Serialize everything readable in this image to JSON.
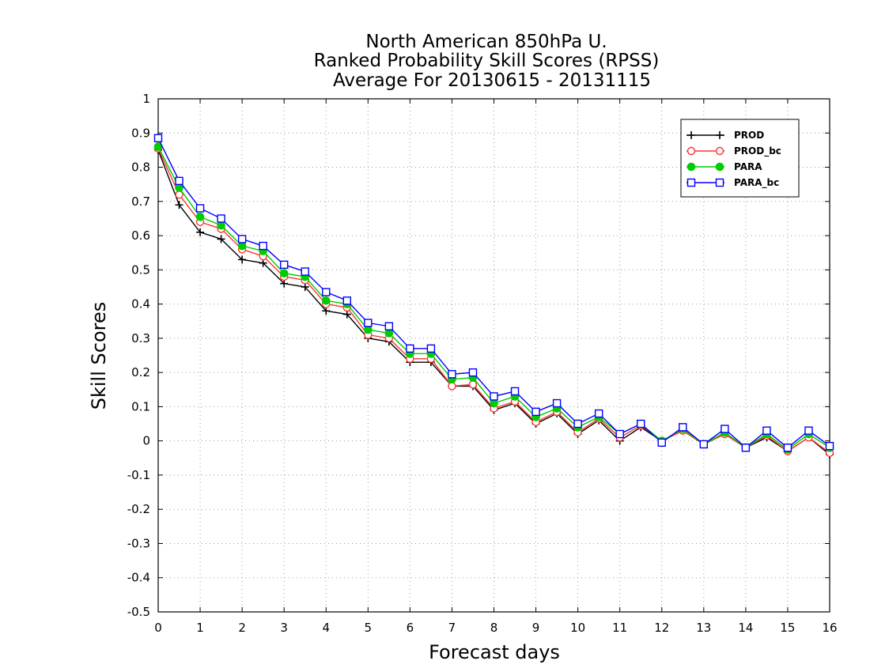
{
  "chart_data": {
    "type": "line",
    "title_lines": [
      "North American 850hPa U.",
      "Ranked Probability Skill Scores (RPSS)",
      "Average For 20130615 - 20131115"
    ],
    "xlabel": "Forecast days",
    "ylabel": "Skill Scores",
    "xlim": [
      0,
      16
    ],
    "ylim": [
      -0.5,
      1
    ],
    "xticks": [
      "0",
      "1",
      "2",
      "3",
      "4",
      "5",
      "6",
      "7",
      "8",
      "9",
      "10",
      "11",
      "12",
      "13",
      "14",
      "15",
      "16"
    ],
    "yticks": [
      "1",
      "0.9",
      "0.8",
      "0.7",
      "0.6",
      "0.5",
      "0.4",
      "0.3",
      "0.2",
      "0.1",
      "0",
      "-0.1",
      "-0.2",
      "-0.3",
      "-0.4",
      "-0.5"
    ],
    "grid": true,
    "legend_position": "top-right",
    "x": [
      0,
      0.5,
      1,
      1.5,
      2,
      2.5,
      3,
      3.5,
      4,
      4.5,
      5,
      5.5,
      6,
      6.5,
      7,
      7.5,
      8,
      8.5,
      9,
      9.5,
      10,
      10.5,
      11,
      11.5,
      12,
      12.5,
      13,
      13.5,
      14,
      14.5,
      15,
      15.5,
      16
    ],
    "series": [
      {
        "name": "PROD",
        "color": "#000000",
        "marker": "plus",
        "values": [
          0.85,
          0.69,
          0.61,
          0.59,
          0.53,
          0.52,
          0.46,
          0.45,
          0.38,
          0.37,
          0.3,
          0.29,
          0.23,
          0.23,
          0.16,
          0.16,
          0.09,
          0.11,
          0.05,
          0.08,
          0.02,
          0.06,
          0.0,
          0.04,
          0.0,
          0.03,
          -0.01,
          0.02,
          -0.02,
          0.01,
          -0.03,
          0.01,
          -0.04
        ]
      },
      {
        "name": "PROD_bc",
        "color": "#ff3333",
        "marker": "open-circle",
        "values": [
          0.855,
          0.72,
          0.64,
          0.62,
          0.56,
          0.54,
          0.48,
          0.47,
          0.4,
          0.39,
          0.31,
          0.3,
          0.24,
          0.24,
          0.16,
          0.165,
          0.095,
          0.115,
          0.055,
          0.085,
          0.025,
          0.065,
          0.01,
          0.045,
          0.0,
          0.03,
          -0.01,
          0.02,
          -0.02,
          0.015,
          -0.03,
          0.01,
          -0.035
        ]
      },
      {
        "name": "PARA",
        "color": "#00cc00",
        "marker": "filled-circle",
        "values": [
          0.86,
          0.74,
          0.655,
          0.63,
          0.57,
          0.555,
          0.49,
          0.48,
          0.41,
          0.4,
          0.325,
          0.315,
          0.255,
          0.255,
          0.18,
          0.185,
          0.11,
          0.13,
          0.07,
          0.095,
          0.04,
          0.07,
          0.02,
          0.05,
          0.0,
          0.035,
          -0.01,
          0.025,
          -0.02,
          0.02,
          -0.025,
          0.02,
          -0.02
        ]
      },
      {
        "name": "PARA_bc",
        "color": "#0000ff",
        "marker": "open-square",
        "values": [
          0.885,
          0.76,
          0.68,
          0.65,
          0.59,
          0.57,
          0.515,
          0.495,
          0.435,
          0.41,
          0.345,
          0.335,
          0.27,
          0.27,
          0.195,
          0.2,
          0.13,
          0.145,
          0.085,
          0.11,
          0.05,
          0.08,
          0.02,
          0.05,
          -0.005,
          0.04,
          -0.01,
          0.035,
          -0.02,
          0.03,
          -0.02,
          0.03,
          -0.015
        ]
      }
    ]
  }
}
